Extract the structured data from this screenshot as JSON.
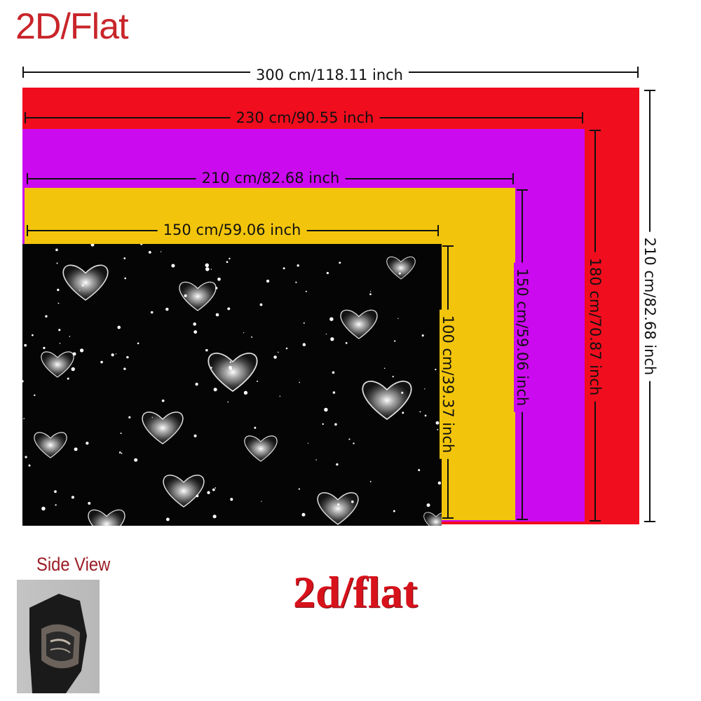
{
  "header": {
    "title": "2D/Flat"
  },
  "colors": {
    "red": "#f00d1e",
    "purple": "#cb0af0",
    "yellow": "#f2c50c",
    "black": "#050505",
    "title": "#c8252a"
  },
  "sizes": [
    {
      "width_label": "300 cm/118.11 inch",
      "height_label": "210 cm/82.68 inch",
      "color": "#f00d1e"
    },
    {
      "width_label": "230 cm/90.55 inch",
      "height_label": "180 cm/70.87 inch",
      "color": "#cb0af0"
    },
    {
      "width_label": "210 cm/82.68 inch",
      "height_label": "150 cm/59.06 inch",
      "color": "#f2c50c"
    },
    {
      "width_label": "150 cm/59.06 inch",
      "height_label": "100 cm/39.37 inch",
      "pattern": "white hearts and stars on black"
    }
  ],
  "side_view": {
    "label": "Side View"
  },
  "footer": {
    "label": "2d/flat"
  }
}
